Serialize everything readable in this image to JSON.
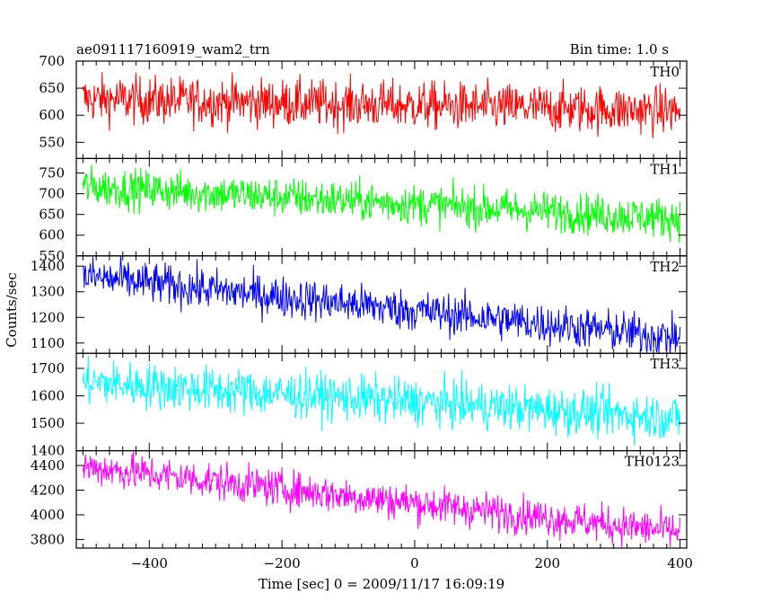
{
  "header": {
    "title": "ae091117160919_wam2_trn",
    "bin_time": "Bin time: 1.0 s"
  },
  "chart_data": {
    "type": "line",
    "xlabel": "Time [sec] 0 = 2009/11/17 16:09:19",
    "ylabel": "Counts/sec",
    "xlim": [
      -510,
      410
    ],
    "x_ticks": [
      -400,
      -200,
      0,
      200,
      400
    ],
    "x_tick_labels": [
      "−400",
      "−200",
      "0",
      "200",
      "400"
    ],
    "bin_time_sec": 1.0,
    "x_range": [
      -500,
      400
    ],
    "panels": [
      {
        "name": "TH0",
        "color": "#ff0000",
        "ylim": [
          520,
          700
        ],
        "y_ticks": [
          550,
          600,
          650,
          700
        ],
        "y_tick_labels": [
          "550",
          "600",
          "650",
          "700"
        ],
        "trend": [
          {
            "x": -500,
            "y": 630
          },
          {
            "x": 400,
            "y": 608
          }
        ],
        "noise_sigma": 22
      },
      {
        "name": "TH1",
        "color": "#00ff00",
        "ylim": [
          550,
          785
        ],
        "y_ticks": [
          550,
          600,
          650,
          700,
          750
        ],
        "y_tick_labels": [
          "550",
          "600",
          "650",
          "700",
          "750"
        ],
        "trend": [
          {
            "x": -500,
            "y": 718
          },
          {
            "x": 400,
            "y": 640
          }
        ],
        "noise_sigma": 24
      },
      {
        "name": "TH2",
        "color": "#0000ff",
        "ylim": [
          1060,
          1440
        ],
        "y_ticks": [
          1100,
          1200,
          1300,
          1400
        ],
        "y_tick_labels": [
          "1100",
          "1200",
          "1300",
          "1400"
        ],
        "trend": [
          {
            "x": -500,
            "y": 1360
          },
          {
            "x": 400,
            "y": 1120
          }
        ],
        "noise_sigma": 40
      },
      {
        "name": "TH3",
        "color": "#00ffff",
        "ylim": [
          1400,
          1755
        ],
        "y_ticks": [
          1400,
          1500,
          1600,
          1700
        ],
        "y_tick_labels": [
          "1400",
          "1500",
          "1600",
          "1700"
        ],
        "trend": [
          {
            "x": -500,
            "y": 1650
          },
          {
            "x": 400,
            "y": 1520
          }
        ],
        "noise_sigma": 42
      },
      {
        "name": "TH0123",
        "color": "#ff00ff",
        "ylim": [
          3730,
          4520
        ],
        "y_ticks": [
          3800,
          4000,
          4200,
          4400
        ],
        "y_tick_labels": [
          "3800",
          "4000",
          "4200",
          "4400"
        ],
        "trend": [
          {
            "x": -500,
            "y": 4390
          },
          {
            "x": 400,
            "y": 3860
          }
        ],
        "noise_sigma": 75
      }
    ]
  }
}
